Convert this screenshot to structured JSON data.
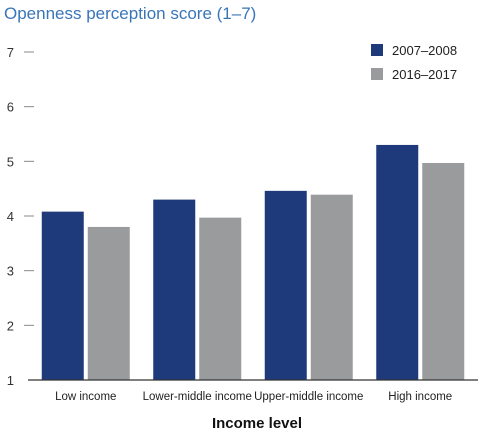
{
  "chart_data": {
    "type": "bar",
    "title": "Openness perception score (1–7)",
    "xlabel": "Income level",
    "ylabel": "",
    "ylim": [
      1,
      7
    ],
    "yticks": [
      1,
      2,
      3,
      4,
      5,
      6,
      7
    ],
    "categories": [
      "Low income",
      "Lower-middle income",
      "Upper-middle income",
      "High income"
    ],
    "series": [
      {
        "name": "2007–2008",
        "color": "#1f3a7a",
        "values": [
          4.08,
          4.3,
          4.46,
          5.3
        ]
      },
      {
        "name": "2016–2017",
        "color": "#9a9b9d",
        "values": [
          3.8,
          3.97,
          4.39,
          4.97
        ]
      }
    ],
    "legend_position": "top-right",
    "grid": false
  }
}
